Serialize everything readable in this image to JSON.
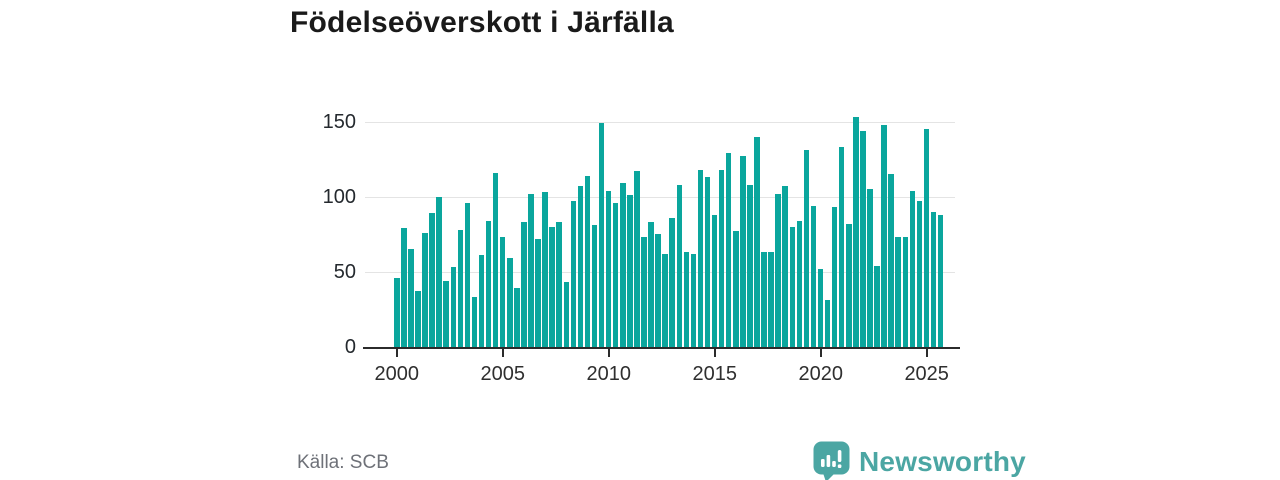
{
  "title": "Födelseöverskott i Järfälla",
  "source": "Källa: SCB",
  "branding": {
    "name": "Newsworthy",
    "icon": "speech-bubble-bar-chart-icon",
    "color": "#4ba6a3"
  },
  "colors": {
    "bar": "#0aa69d",
    "grid": "#e4e4e4",
    "axis": "#2b2b2b",
    "y_label": "#24292e",
    "x_label": "#2f2f2f",
    "source_text": "#6e7178"
  },
  "chart_data": {
    "type": "bar",
    "title": "Födelseöverskott i Järfälla",
    "xlabel": "",
    "ylabel": "",
    "x_start_year": 2000,
    "periods_per_year": 3,
    "x_tick_labels": [
      "2000",
      "2005",
      "2010",
      "2015",
      "2020",
      "2025"
    ],
    "x_tick_every_n_bars": 15,
    "y_ticks": [
      0,
      50,
      100,
      150
    ],
    "ylim": [
      0,
      158
    ],
    "grid": "horizontal",
    "legend": "none",
    "series": [
      {
        "name": "Födelseöverskott",
        "values": [
          46,
          79,
          65,
          37,
          76,
          89,
          100,
          44,
          53,
          78,
          96,
          33,
          61,
          84,
          116,
          73,
          59,
          39,
          83,
          102,
          72,
          103,
          80,
          83,
          43,
          97,
          107,
          114,
          81,
          149,
          104,
          96,
          109,
          101,
          117,
          73,
          83,
          75,
          62,
          86,
          108,
          63,
          62,
          118,
          113,
          88,
          118,
          129,
          77,
          127,
          108,
          140,
          63,
          63,
          102,
          107,
          80,
          84,
          131,
          94,
          52,
          31,
          93,
          133,
          82,
          153,
          144,
          105,
          54,
          148,
          115,
          73,
          73,
          104,
          97,
          145,
          90,
          88
        ]
      }
    ]
  }
}
